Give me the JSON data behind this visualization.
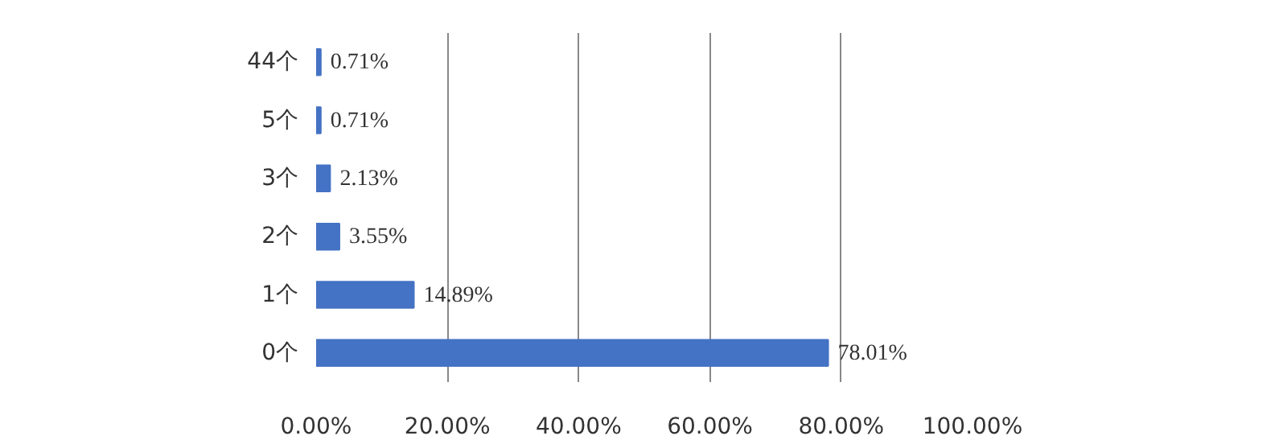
{
  "chart_data": {
    "type": "bar",
    "orientation": "horizontal",
    "categories": [
      "44个",
      "5个",
      "3个",
      "2个",
      "1个",
      "0个"
    ],
    "values": [
      0.71,
      0.71,
      2.13,
      3.55,
      14.89,
      78.01
    ],
    "value_labels": [
      "0.71%",
      "0.71%",
      "2.13%",
      "3.55%",
      "14.89%",
      "78.01%"
    ],
    "color": "#4472c4",
    "xlim": [
      0,
      100
    ],
    "xticks": [
      {
        "value": 0,
        "label": "0.00%"
      },
      {
        "value": 20,
        "label": "20.00%"
      },
      {
        "value": 40,
        "label": "40.00%"
      },
      {
        "value": 60,
        "label": "60.00%"
      },
      {
        "value": 80,
        "label": "80.00%"
      },
      {
        "value": 100,
        "label": "100.00%"
      }
    ],
    "grid": "x"
  }
}
